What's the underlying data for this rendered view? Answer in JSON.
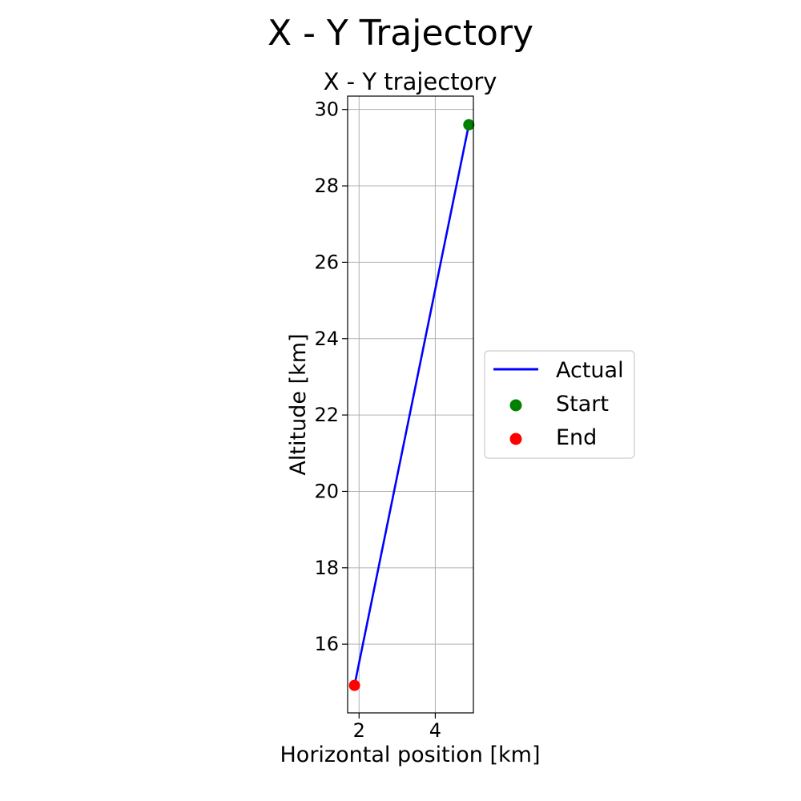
{
  "chart_data": {
    "type": "line",
    "suptitle": "X - Y Trajectory",
    "title": "X - Y trajectory",
    "xlabel": "Horizontal position [km]",
    "ylabel": "Altitude [km]",
    "xlim": [
      1.7,
      5.0
    ],
    "ylim": [
      14.2,
      30.35
    ],
    "xticks": [
      2,
      4
    ],
    "yticks": [
      16,
      18,
      20,
      22,
      24,
      26,
      28,
      30
    ],
    "grid": true,
    "legend_position": "right, outside plot",
    "series": [
      {
        "name": "Actual",
        "kind": "line",
        "color": "#0000ff",
        "x": [
          1.88,
          4.88
        ],
        "y": [
          14.92,
          29.6
        ]
      },
      {
        "name": "Start",
        "kind": "point",
        "color": "#008000",
        "x": [
          4.88
        ],
        "y": [
          29.6
        ]
      },
      {
        "name": "End",
        "kind": "point",
        "color": "#ff0000",
        "x": [
          1.88
        ],
        "y": [
          14.92
        ]
      }
    ]
  }
}
